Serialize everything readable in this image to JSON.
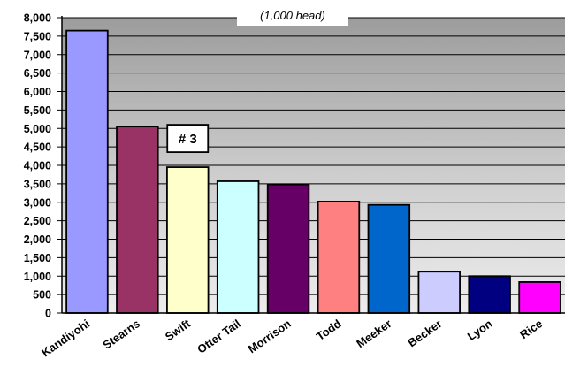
{
  "chart_data": {
    "type": "bar",
    "title": "",
    "unit_label": "(1,000 head)",
    "xlabel": "",
    "ylabel": "",
    "ylim": [
      0,
      8000
    ],
    "yticks": [
      "0",
      "500",
      "1,000",
      "1,500",
      "2,000",
      "2,500",
      "3,000",
      "3,500",
      "4,000",
      "4,500",
      "5,000",
      "5,500",
      "6,000",
      "6,500",
      "7,000",
      "7,500",
      "8,000"
    ],
    "categories": [
      "Kandiyohi",
      "Stearns",
      "Swift",
      "Otter Tail",
      "Morrison",
      "Todd",
      "Meeker",
      "Becker",
      "Lyon",
      "Rice"
    ],
    "values": [
      7650,
      5050,
      3950,
      3570,
      3480,
      3020,
      2930,
      1120,
      1000,
      840
    ],
    "colors": [
      "#9999ff",
      "#993366",
      "#ffffcc",
      "#ccffff",
      "#660066",
      "#ff8080",
      "#0066cc",
      "#ccccff",
      "#000080",
      "#ff00ff"
    ],
    "annotation": {
      "text": "# 3",
      "category": "Swift"
    },
    "grid": true,
    "plot_background": "gradient #e6e6e6 to #9a9a9a"
  }
}
